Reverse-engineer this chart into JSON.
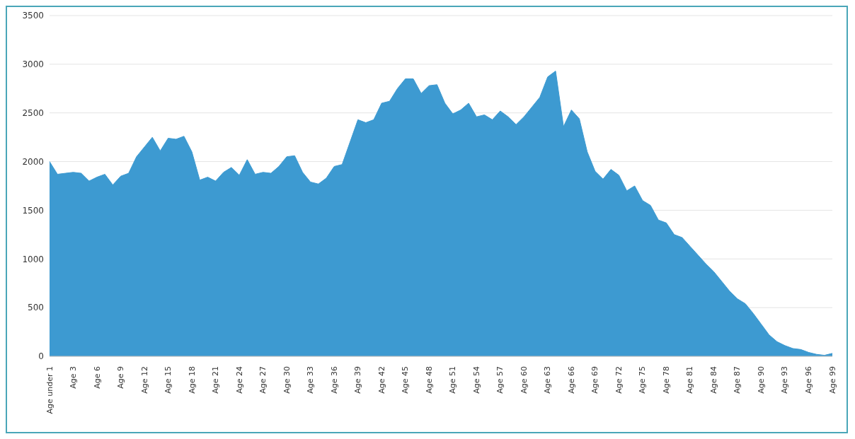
{
  "chart_data": {
    "type": "area",
    "categories": [
      "Age under 1",
      null,
      null,
      "Age 3",
      null,
      null,
      "Age 6",
      null,
      null,
      "Age 9",
      null,
      null,
      "Age 12",
      null,
      null,
      "Age 15",
      null,
      null,
      "Age 18",
      null,
      null,
      "Age 21",
      null,
      null,
      "Age 24",
      null,
      null,
      "Age 27",
      null,
      null,
      "Age 30",
      null,
      null,
      "Age 33",
      null,
      null,
      "Age 36",
      null,
      null,
      "Age 39",
      null,
      null,
      "Age 42",
      null,
      null,
      "Age 45",
      null,
      null,
      "Age 48",
      null,
      null,
      "Age 51",
      null,
      null,
      "Age 54",
      null,
      null,
      "Age 57",
      null,
      null,
      "Age 60",
      null,
      null,
      "Age 63",
      null,
      null,
      "Age 66",
      null,
      null,
      "Age 69",
      null,
      null,
      "Age 72",
      null,
      null,
      "Age 75",
      null,
      null,
      "Age 78",
      null,
      null,
      "Age 81",
      null,
      null,
      "Age 84",
      null,
      null,
      "Age 87",
      null,
      null,
      "Age 90",
      null,
      null,
      "Age 93",
      null,
      null,
      "Age 96",
      null,
      null,
      "Age 99"
    ],
    "values": [
      2000,
      1870,
      1880,
      1890,
      1880,
      1800,
      1840,
      1870,
      1760,
      1850,
      1880,
      2050,
      2150,
      2250,
      2110,
      2240,
      2230,
      2260,
      2100,
      1810,
      1840,
      1800,
      1890,
      1940,
      1860,
      2020,
      1870,
      1890,
      1880,
      1950,
      2050,
      2060,
      1890,
      1790,
      1770,
      1830,
      1950,
      1970,
      2200,
      2430,
      2400,
      2430,
      2600,
      2620,
      2750,
      2850,
      2850,
      2700,
      2780,
      2790,
      2600,
      2490,
      2530,
      2600,
      2460,
      2480,
      2430,
      2520,
      2460,
      2380,
      2460,
      2560,
      2660,
      2870,
      2930,
      2360,
      2530,
      2440,
      2100,
      1900,
      1820,
      1920,
      1860,
      1700,
      1750,
      1600,
      1550,
      1400,
      1370,
      1250,
      1220,
      1130,
      1040,
      950,
      870,
      770,
      670,
      590,
      540,
      440,
      330,
      220,
      150,
      110,
      80,
      70,
      40,
      20,
      10,
      30
    ],
    "color": "#3d9ad1",
    "ylim": [
      0,
      3500
    ],
    "yticks": [
      0,
      500,
      1000,
      1500,
      2000,
      2500,
      3000,
      3500
    ],
    "grid": "y",
    "legend": false
  }
}
